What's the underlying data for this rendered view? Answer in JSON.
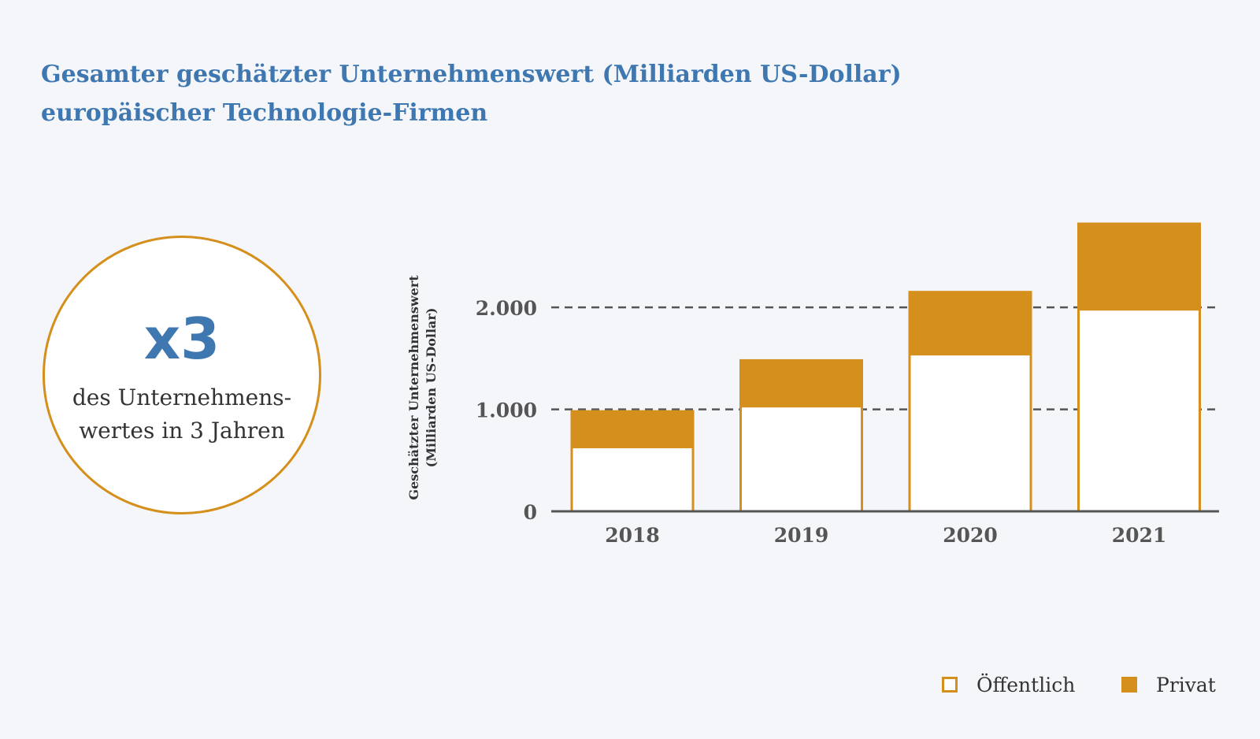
{
  "title": {
    "line1": "Gesamter geschätzter Unternehmenswert (Milliarden US-Dollar)",
    "line2": "europäischer Technologie-Firmen"
  },
  "highlight": {
    "value": "x3",
    "line1": "des Unternehmens-",
    "line2": "wertes in 3 Jahren"
  },
  "chart_data": {
    "type": "bar",
    "stacked": true,
    "categories": [
      "2018",
      "2019",
      "2020",
      "2021"
    ],
    "series": [
      {
        "name": "Öffentlich",
        "values": [
          630,
          1030,
          1540,
          1980
        ],
        "color": "#ffffff",
        "stroke": "#d58f1c"
      },
      {
        "name": "Privat",
        "values": [
          350,
          450,
          610,
          840
        ],
        "color": "#d58f1c"
      }
    ],
    "ylabel_line1": "Geschätzter Unternehmenswert",
    "ylabel_line2": "(Milliarden US-Dollar)",
    "xlabel": "",
    "yticks": [
      {
        "value": 0,
        "label": "0"
      },
      {
        "value": 1000,
        "label": "1.000"
      },
      {
        "value": 2000,
        "label": "2.000"
      }
    ],
    "ylim": [
      0,
      2820
    ],
    "gridlines": "dashed",
    "legend_position": "bottom-right"
  },
  "legend": {
    "public_label": "Öffentlich",
    "private_label": "Privat"
  },
  "colors": {
    "accent": "#d58f1c",
    "title": "#3f78b0",
    "text": "#333333",
    "background": "#f5f6fa"
  }
}
